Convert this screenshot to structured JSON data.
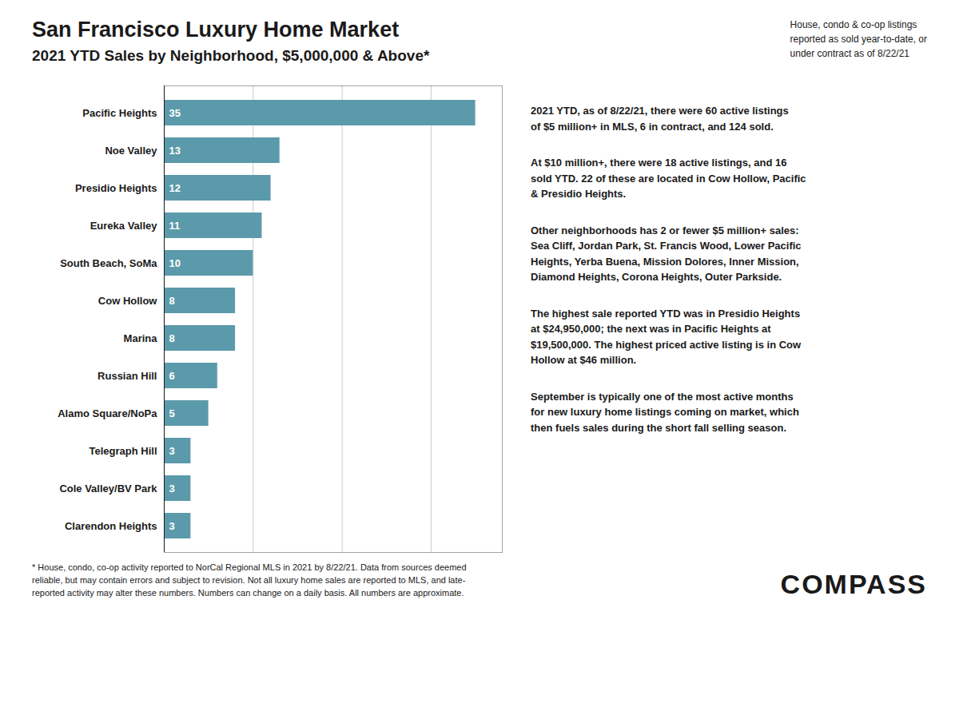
{
  "chart_data": {
    "type": "bar",
    "orientation": "horizontal",
    "title": "San Francisco Luxury Home Market",
    "subtitle": "2021 YTD Sales by Neighborhood, $5,000,000 & Above*",
    "categories": [
      "Pacific Heights",
      "Noe Valley",
      "Presidio Heights",
      "Eureka Valley",
      "South Beach, SoMa",
      "Cow Hollow",
      "Marina",
      "Russian Hill",
      "Alamo Square/NoPa",
      "Telegraph Hill",
      "Cole Valley/BV Park",
      "Clarendon Heights"
    ],
    "values": [
      35,
      13,
      12,
      11,
      10,
      8,
      8,
      6,
      5,
      3,
      3,
      3
    ],
    "color": "#5b9aaa",
    "xlim": [
      0,
      38
    ],
    "xticks": [
      10,
      20,
      30
    ],
    "grid": true,
    "tick_labels": "y",
    "data_labels": true,
    "annotations": [
      "House, condo & co-op listings\nreported as sold year-to-date, or\nunder contract as of 8/22/21",
      "2021 YTD, as of 8/22/21, there were 60 active listings\nof $5 million+ in MLS, 6 in contract, and 124 sold.",
      "At $10 million+, there were 18 active listings, and 16\nsold YTD. 22 of these are located in Cow Hollow, Pacific\n& Presidio Heights.",
      "Other neighborhoods has 2 or fewer $5 million+ sales:\nSea Cliff, Jordan Park, St. Francis Wood, Lower Pacific\nHeights, Yerba Buena, Mission Dolores, Inner Mission,\nDiamond Heights, Corona Heights, Outer Parkside.",
      "The highest sale reported YTD was in Presidio Heights\nat $24,950,000; the next was in Pacific Heights at\n$19,500,000.  The highest priced active listing is in Cow\nHollow at $46 million.",
      "September is typically one of the most active months\nfor new luxury home listings coming on market, which\nthen fuels sales during the short fall selling season.",
      "* House, condo, co-op activity reported to NorCal Regional MLS in 2021 by 8/22/21. Data from sources deemed\nreliable, but may contain errors and subject to revision. Not all luxury home sales are reported to MLS, and late-\nreported activity may alter these numbers. Numbers can change on a daily basis. All numbers are approximate.",
      "COMPASS"
    ]
  }
}
